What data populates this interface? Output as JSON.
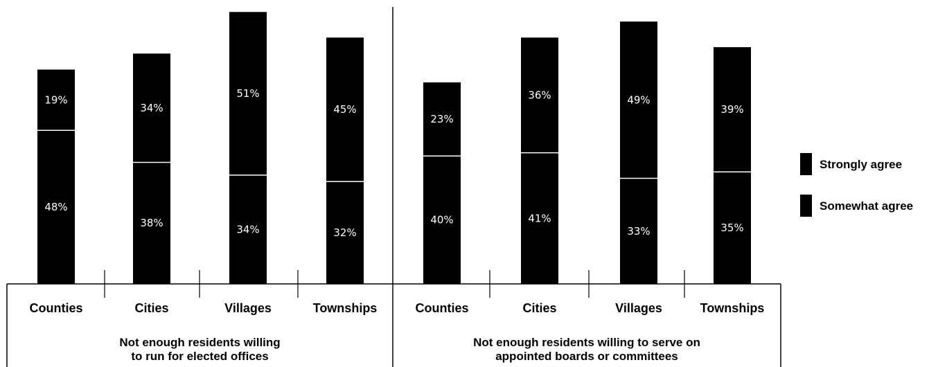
{
  "chart_data": {
    "type": "bar",
    "stacked": true,
    "units": "%",
    "title": "",
    "xlabel": "",
    "ylabel": "",
    "ylim": [
      0,
      86
    ],
    "grid": false,
    "legend_position": "right",
    "colors": {
      "strongly_agree": "#000000",
      "somewhat_agree": "#000000",
      "separator": "#ffffff"
    },
    "legend": [
      "Strongly agree",
      "Somewhat agree"
    ],
    "groups": [
      {
        "label_lines": [
          "Not enough residents willing",
          "to run for elected offices"
        ],
        "categories": [
          "Counties",
          "Cities",
          "Villages",
          "Townships"
        ],
        "series": [
          {
            "name": "Somewhat agree",
            "values": [
              48,
              38,
              34,
              32
            ]
          },
          {
            "name": "Strongly agree",
            "values": [
              19,
              34,
              51,
              45
            ]
          }
        ]
      },
      {
        "label_lines": [
          "Not enough residents willing to serve on",
          "appointed boards or committees"
        ],
        "categories": [
          "Counties",
          "Cities",
          "Villages",
          "Townships"
        ],
        "series": [
          {
            "name": "Somewhat agree",
            "values": [
              40,
              41,
              33,
              35
            ]
          },
          {
            "name": "Strongly agree",
            "values": [
              23,
              36,
              49,
              39
            ]
          }
        ]
      }
    ]
  }
}
